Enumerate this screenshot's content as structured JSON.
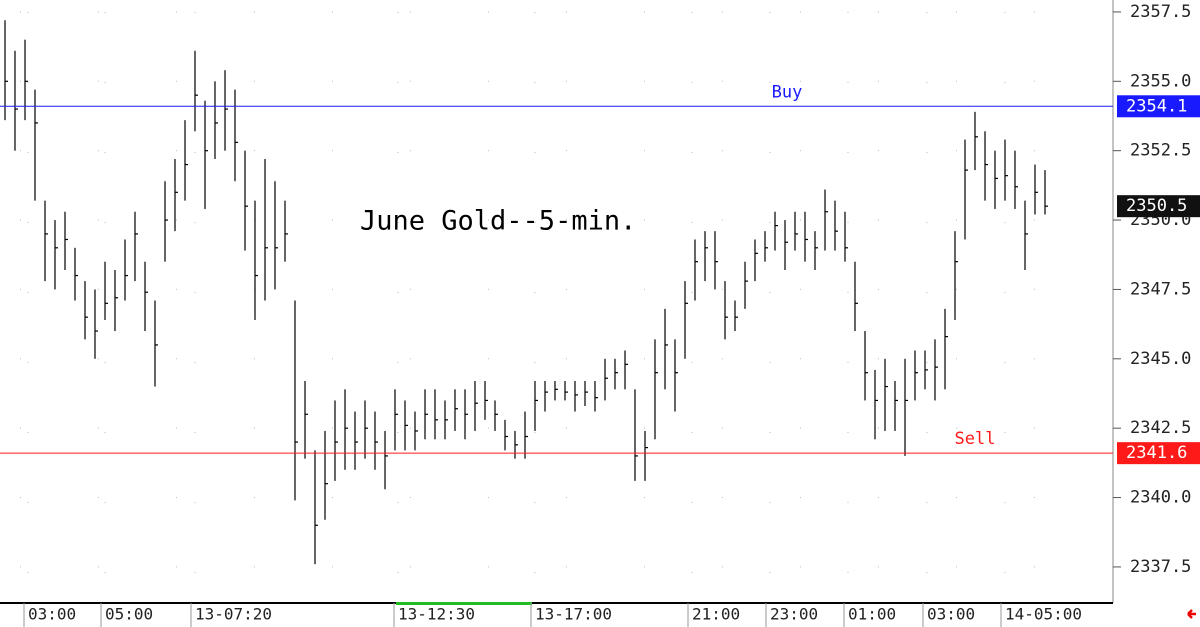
{
  "chart_data": {
    "type": "ohlc",
    "title": "June Gold--5-min.",
    "high": [
      2357.2,
      2356.1,
      2356.5,
      2354.7,
      2350.7,
      2350,
      2350.3,
      2349,
      2347.8,
      2347.5,
      2348.5,
      2348.2,
      2349.3,
      2350.3,
      2348.5,
      2347.1,
      2351.4,
      2352.2,
      2353.6,
      2356.1,
      2354.3,
      2355,
      2355.4,
      2354.7,
      2352.5,
      2350.7,
      2352.2,
      2351.4,
      2350.7,
      2347.1,
      2344.2,
      2341.7,
      2342.4,
      2343.5,
      2343.9,
      2343.1,
      2343.5,
      2343.1,
      2342.4,
      2343.9,
      2343.5,
      2343.1,
      2343.9,
      2343.9,
      2343.5,
      2343.9,
      2343.9,
      2344.2,
      2344.2,
      2343.5,
      2342.8,
      2342.4,
      2343.1,
      2344.2,
      2344.2,
      2344.2,
      2344.2,
      2344.2,
      2344.2,
      2344.2,
      2345,
      2345,
      2345.3,
      2343.9,
      2342.4,
      2345.7,
      2346.8,
      2345.7,
      2347.8,
      2349.3,
      2349.6,
      2349.6,
      2347.8,
      2347.1,
      2348.5,
      2349.3,
      2349.6,
      2350.3,
      2350,
      2350.3,
      2350.3,
      2349.6,
      2351.1,
      2350.7,
      2350.3,
      2348.5,
      2346,
      2344.6,
      2345,
      2344.2,
      2345,
      2345.3,
      2345.3,
      2345.7,
      2346.8,
      2349.6,
      2352.9,
      2353.9,
      2353.2,
      2352.5,
      2352.9,
      2352.5,
      2350.7,
      2352,
      2351.8
    ],
    "low": [
      2353.6,
      2352.5,
      2353.6,
      2350.7,
      2347.8,
      2347.5,
      2348.2,
      2347.1,
      2345.7,
      2345,
      2346.4,
      2346,
      2347.1,
      2347.8,
      2346,
      2344,
      2348.5,
      2349.6,
      2350.7,
      2353.2,
      2350.4,
      2352.2,
      2352.5,
      2351.4,
      2348.9,
      2346.4,
      2347.1,
      2347.5,
      2348.5,
      2339.9,
      2341.4,
      2337.6,
      2339.2,
      2340.6,
      2341,
      2341,
      2341.4,
      2341,
      2340.3,
      2341.7,
      2341.7,
      2341.7,
      2342.1,
      2342.1,
      2342.1,
      2342.4,
      2342.1,
      2342.4,
      2342.8,
      2342.4,
      2341.7,
      2341.4,
      2341.4,
      2342.4,
      2343.1,
      2343.5,
      2343.5,
      2343.1,
      2343.3,
      2343.1,
      2343.5,
      2343.9,
      2343.9,
      2340.6,
      2340.6,
      2342.1,
      2343.9,
      2343.1,
      2345,
      2347.1,
      2347.8,
      2347.5,
      2345.7,
      2346,
      2346.8,
      2347.8,
      2348.5,
      2348.9,
      2348.2,
      2348.9,
      2348.5,
      2348.2,
      2348.9,
      2348.9,
      2348.5,
      2346,
      2343.5,
      2342.1,
      2342.4,
      2342.4,
      2341.5,
      2343.5,
      2343.9,
      2343.5,
      2343.9,
      2346.4,
      2349.3,
      2351.8,
      2350.7,
      2350.4,
      2350.7,
      2350.4,
      2348.2,
      2350.2,
      2350.2
    ],
    "close": [
      2355,
      2354,
      2355,
      2353.5,
      2349.5,
      2349,
      2349.3,
      2348,
      2346.5,
      2346,
      2347,
      2347.2,
      2348,
      2349.5,
      2347.4,
      2345.5,
      2350,
      2351,
      2352,
      2354.5,
      2352.5,
      2353.5,
      2354,
      2352.8,
      2350.5,
      2348,
      2349,
      2349,
      2349.5,
      2342,
      2343,
      2339,
      2340.5,
      2342,
      2342.5,
      2342,
      2342.5,
      2342,
      2341.5,
      2343,
      2342.6,
      2342.4,
      2343,
      2342.8,
      2342.8,
      2343.2,
      2343,
      2343.4,
      2343.5,
      2343,
      2342.2,
      2341.9,
      2342.2,
      2343.5,
      2343.8,
      2343.9,
      2343.8,
      2343.7,
      2343.8,
      2343.6,
      2344.3,
      2344.5,
      2344.8,
      2341.5,
      2341.8,
      2344.5,
      2345.5,
      2344.5,
      2347,
      2348.5,
      2349,
      2348.5,
      2346.5,
      2346.5,
      2347.8,
      2348.8,
      2349,
      2349.8,
      2349.2,
      2349.5,
      2349.3,
      2349,
      2350.3,
      2349.6,
      2349,
      2347,
      2344.5,
      2343.5,
      2344,
      2343.5,
      2343.5,
      2344.5,
      2344.6,
      2344.7,
      2345.8,
      2348.5,
      2351.8,
      2353,
      2352,
      2351.5,
      2351.6,
      2351.2,
      2349.5,
      2351,
      2350.5
    ],
    "bar_color": "#000000",
    "levels": [
      {
        "name": "Buy",
        "value": 2354.1,
        "color": "#1a1aff"
      },
      {
        "name": "Sell",
        "value": 2341.6,
        "color": "#ff1a1a"
      }
    ],
    "ylim": [
      2336.2,
      2357.93
    ],
    "yticks": [
      2337.5,
      {
        "value": 2340,
        "label": "2340.0"
      },
      2342.5,
      {
        "value": 2345,
        "label": "2345.0"
      },
      2347.5,
      {
        "value": 2350,
        "label": "2350.0"
      },
      2352.5,
      {
        "value": 2355,
        "label": "2355.0"
      },
      2357.5
    ],
    "xlim": [
      0,
      111.3
    ],
    "xticks": [
      {
        "value": 2.8,
        "label": "03:00"
      },
      {
        "value": 10.5,
        "label": "05:00"
      },
      {
        "value": 19.5,
        "label": "13-07:20"
      },
      {
        "value": 39.8,
        "label": "13-12:30"
      },
      {
        "value": 53.5,
        "label": "13-17:00"
      },
      {
        "value": 69.2,
        "label": "21:00"
      },
      {
        "value": 77,
        "label": "23:00"
      },
      {
        "value": 84.8,
        "label": "01:00"
      },
      {
        "value": 92.7,
        "label": "03:00"
      },
      {
        "value": 100.5,
        "label": "14-05:00"
      }
    ],
    "grid": true
  }
}
